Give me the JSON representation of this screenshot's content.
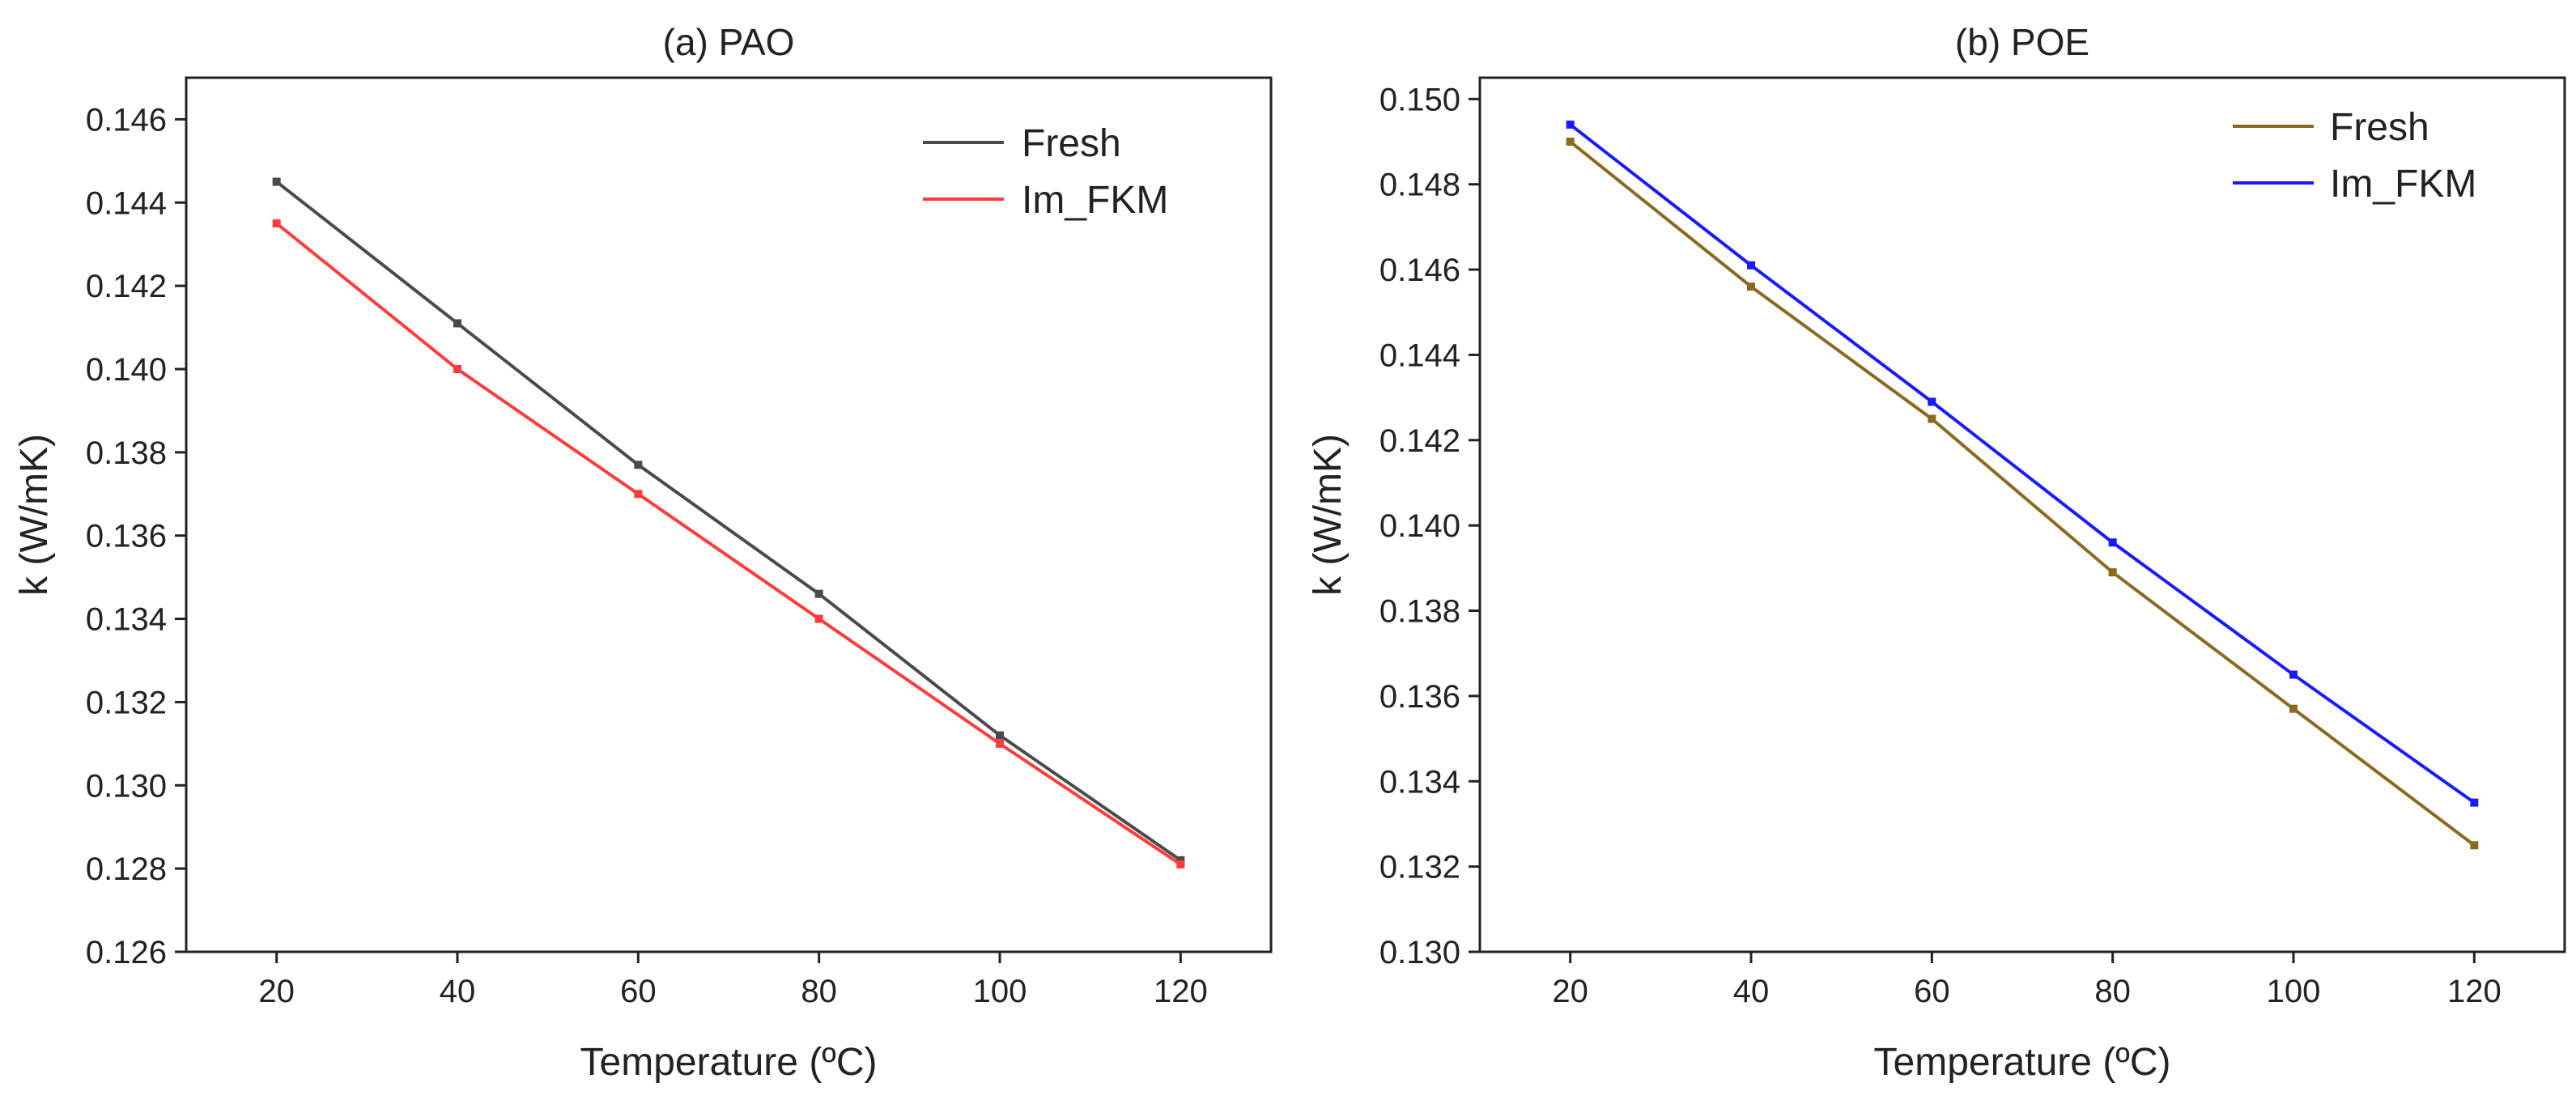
{
  "chart_data": [
    {
      "type": "line",
      "title": "(a) PAO",
      "xlabel": "Temperature (ºC)",
      "ylabel": "k (W/mK)",
      "xlim": [
        10,
        130
      ],
      "ylim": [
        0.126,
        0.147
      ],
      "xticks": [
        20,
        40,
        60,
        80,
        100,
        120
      ],
      "xtick_labels": [
        "20",
        "40",
        "60",
        "80",
        "100",
        "120"
      ],
      "yticks": [
        0.126,
        0.128,
        0.13,
        0.132,
        0.134,
        0.136,
        0.138,
        0.14,
        0.142,
        0.144,
        0.146
      ],
      "ytick_labels": [
        "0.126",
        "0.128",
        "0.130",
        "0.132",
        "0.134",
        "0.136",
        "0.138",
        "0.140",
        "0.142",
        "0.144",
        "0.146"
      ],
      "legend_position": "top-right",
      "x": [
        20,
        40,
        60,
        80,
        100,
        120
      ],
      "series": [
        {
          "name": "Fresh",
          "color": "#4a4a4a",
          "values": [
            0.1445,
            0.1411,
            0.1377,
            0.1346,
            0.1312,
            0.1282
          ]
        },
        {
          "name": "Im_FKM",
          "color": "#ff3b3b",
          "values": [
            0.1435,
            0.14,
            0.137,
            0.134,
            0.131,
            0.1281
          ]
        }
      ]
    },
    {
      "type": "line",
      "title": "(b) POE",
      "xlabel": "Temperature (ºC)",
      "ylabel": "k (W/mK)",
      "xlim": [
        10,
        130
      ],
      "ylim": [
        0.13,
        0.1505
      ],
      "xticks": [
        20,
        40,
        60,
        80,
        100,
        120
      ],
      "xtick_labels": [
        "20",
        "40",
        "60",
        "80",
        "100",
        "120"
      ],
      "yticks": [
        0.13,
        0.132,
        0.134,
        0.136,
        0.138,
        0.14,
        0.142,
        0.144,
        0.146,
        0.148,
        0.15
      ],
      "ytick_labels": [
        "0.130",
        "0.132",
        "0.134",
        "0.136",
        "0.138",
        "0.140",
        "0.142",
        "0.144",
        "0.146",
        "0.148",
        "0.150"
      ],
      "legend_position": "top-right",
      "x": [
        20,
        40,
        60,
        80,
        100,
        120
      ],
      "series": [
        {
          "name": "Fresh",
          "color": "#8b6a1f",
          "values": [
            0.149,
            0.1456,
            0.1425,
            0.1389,
            0.1357,
            0.1325
          ]
        },
        {
          "name": "Im_FKM",
          "color": "#1a1aff",
          "values": [
            0.1494,
            0.1461,
            0.1429,
            0.1396,
            0.1365,
            0.1335
          ]
        }
      ]
    }
  ]
}
